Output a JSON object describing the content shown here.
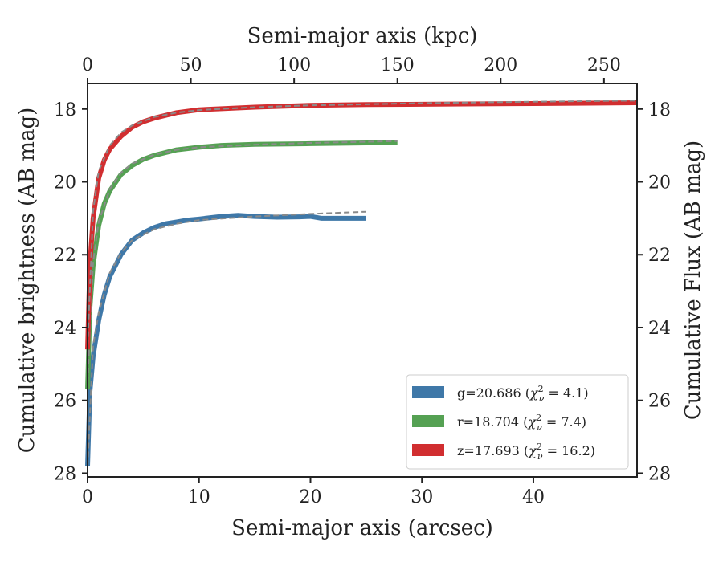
{
  "chart_data": {
    "type": "line",
    "xlabel": "Semi-major axis (arcsec)",
    "xlabel_top": "Semi-major axis (kpc)",
    "ylabel": "Cumulative brightness (AB mag)",
    "ylabel_right": "Cumulative Flux (AB mag)",
    "xlim": [
      0,
      49.3
    ],
    "xlim_top": [
      0,
      266
    ],
    "ylim": [
      28.1,
      17.3
    ],
    "y_inverted": true,
    "xticks": [
      0,
      10,
      20,
      30,
      40
    ],
    "xticks_top": [
      0,
      50,
      100,
      150,
      200,
      250
    ],
    "yticks": [
      18,
      20,
      22,
      24,
      26,
      28
    ],
    "legend_position": "lower-right",
    "grid": false,
    "series": [
      {
        "key": "g",
        "band": "g",
        "mag": "20.686",
        "chi2": "4.1",
        "color": "#3f78a8",
        "x": [
          0.0,
          0.2,
          0.5,
          1.0,
          1.5,
          2.0,
          3.0,
          4.0,
          5.0,
          6.0,
          7.0,
          8.0,
          9.0,
          10.0,
          12.0,
          13.5,
          15.0,
          17.0,
          19.0,
          20.0,
          21.0,
          23.0,
          25.0
        ],
        "y": [
          27.8,
          25.8,
          24.8,
          23.8,
          23.1,
          22.6,
          22.0,
          21.6,
          21.4,
          21.25,
          21.15,
          21.1,
          21.05,
          21.02,
          20.95,
          20.92,
          20.95,
          20.97,
          20.96,
          20.95,
          21.0,
          21.0,
          21.0
        ],
        "model_x": [
          0.0,
          0.5,
          1.0,
          2.0,
          3.0,
          4.0,
          6.0,
          8.0,
          10.0,
          15.0,
          20.0,
          25.0
        ],
        "model_y": [
          27.8,
          24.5,
          23.6,
          22.5,
          21.95,
          21.6,
          21.3,
          21.15,
          21.05,
          20.95,
          20.88,
          20.82
        ]
      },
      {
        "key": "r",
        "band": "r",
        "mag": "18.704",
        "chi2": "7.4",
        "color": "#55a153",
        "x": [
          0.0,
          0.2,
          0.5,
          1.0,
          1.5,
          2.0,
          3.0,
          4.0,
          5.0,
          6.0,
          8.0,
          10.0,
          12.0,
          15.0,
          20.0,
          25.0,
          27.8
        ],
        "y": [
          25.7,
          23.5,
          22.3,
          21.2,
          20.6,
          20.25,
          19.8,
          19.55,
          19.38,
          19.27,
          19.12,
          19.05,
          19.0,
          18.97,
          18.95,
          18.93,
          18.92
        ],
        "model_x": [
          0.0,
          0.5,
          1.0,
          2.0,
          3.0,
          4.0,
          6.0,
          8.0,
          10.0,
          15.0,
          20.0,
          25.0,
          27.8
        ],
        "model_y": [
          25.5,
          22.2,
          21.1,
          20.2,
          19.75,
          19.5,
          19.25,
          19.12,
          19.05,
          18.98,
          18.93,
          18.9,
          18.88
        ]
      },
      {
        "key": "z",
        "band": "z",
        "mag": "17.693",
        "chi2": "16.2",
        "color": "#d12e30",
        "x": [
          0.0,
          0.2,
          0.5,
          1.0,
          1.5,
          2.0,
          3.0,
          4.0,
          5.0,
          6.0,
          8.0,
          10.0,
          15.0,
          20.0,
          25.0,
          30.0,
          35.0,
          40.0,
          45.0,
          49.3
        ],
        "y": [
          24.6,
          22.3,
          21.0,
          19.9,
          19.4,
          19.1,
          18.75,
          18.5,
          18.35,
          18.25,
          18.1,
          18.02,
          17.95,
          17.9,
          17.88,
          17.87,
          17.86,
          17.85,
          17.84,
          17.83
        ],
        "model_x": [
          0.0,
          0.5,
          1.0,
          2.0,
          3.0,
          4.0,
          6.0,
          8.0,
          10.0,
          15.0,
          20.0,
          30.0,
          40.0,
          49.3
        ],
        "model_y": [
          24.5,
          20.8,
          19.7,
          19.0,
          18.65,
          18.45,
          18.22,
          18.1,
          18.03,
          17.95,
          17.9,
          17.84,
          17.8,
          17.77
        ]
      }
    ]
  }
}
